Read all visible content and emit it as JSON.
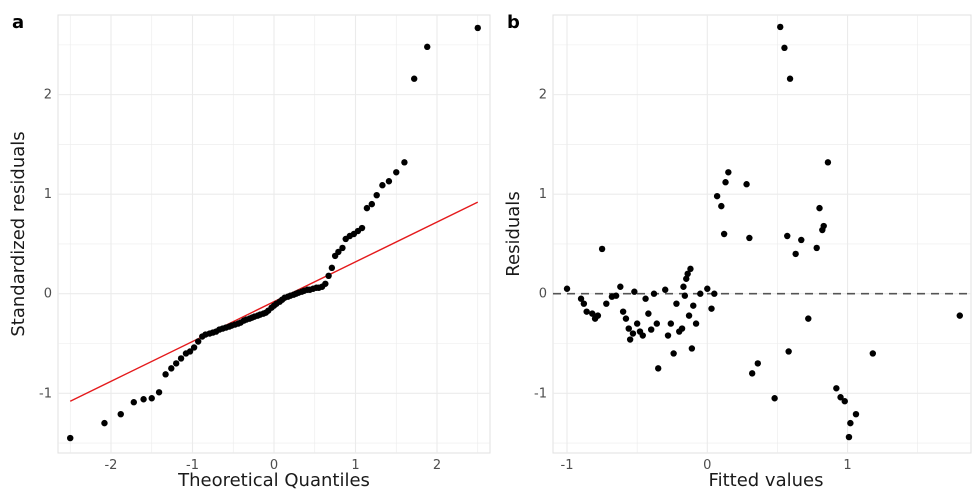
{
  "chart_data": [
    {
      "panel_tag": "a",
      "type": "scatter",
      "xlabel": "Theoretical Quantiles",
      "ylabel": "Standardized residuals",
      "xlim": [
        -2.65,
        2.65
      ],
      "ylim": [
        -1.6,
        2.8
      ],
      "xticks": [
        -2,
        -1,
        0,
        1,
        2
      ],
      "yticks": [
        -1,
        0,
        1,
        2
      ],
      "grid": true,
      "reference_line": {
        "color": "#e41a1c",
        "x": [
          -2.5,
          2.5
        ],
        "y": [
          -1.08,
          0.92
        ]
      },
      "points": [
        [
          -2.5,
          -1.45
        ],
        [
          -2.08,
          -1.3
        ],
        [
          -1.88,
          -1.21
        ],
        [
          -1.72,
          -1.09
        ],
        [
          -1.6,
          -1.06
        ],
        [
          -1.5,
          -1.05
        ],
        [
          -1.41,
          -0.99
        ],
        [
          -1.33,
          -0.81
        ],
        [
          -1.26,
          -0.75
        ],
        [
          -1.2,
          -0.7
        ],
        [
          -1.14,
          -0.65
        ],
        [
          -1.08,
          -0.6
        ],
        [
          -1.03,
          -0.58
        ],
        [
          -0.98,
          -0.54
        ],
        [
          -0.93,
          -0.48
        ],
        [
          -0.88,
          -0.43
        ],
        [
          -0.84,
          -0.41
        ],
        [
          -0.79,
          -0.4
        ],
        [
          -0.75,
          -0.39
        ],
        [
          -0.71,
          -0.38
        ],
        [
          -0.67,
          -0.36
        ],
        [
          -0.63,
          -0.35
        ],
        [
          -0.59,
          -0.34
        ],
        [
          -0.55,
          -0.33
        ],
        [
          -0.52,
          -0.32
        ],
        [
          -0.48,
          -0.31
        ],
        [
          -0.44,
          -0.3
        ],
        [
          -0.41,
          -0.29
        ],
        [
          -0.37,
          -0.27
        ],
        [
          -0.34,
          -0.26
        ],
        [
          -0.3,
          -0.25
        ],
        [
          -0.27,
          -0.24
        ],
        [
          -0.24,
          -0.23
        ],
        [
          -0.2,
          -0.22
        ],
        [
          -0.17,
          -0.21
        ],
        [
          -0.13,
          -0.2
        ],
        [
          -0.1,
          -0.19
        ],
        [
          -0.07,
          -0.17
        ],
        [
          -0.03,
          -0.14
        ],
        [
          0.0,
          -0.12
        ],
        [
          0.03,
          -0.1
        ],
        [
          0.07,
          -0.08
        ],
        [
          0.1,
          -0.06
        ],
        [
          0.13,
          -0.04
        ],
        [
          0.17,
          -0.03
        ],
        [
          0.2,
          -0.02
        ],
        [
          0.24,
          -0.01
        ],
        [
          0.27,
          0.0
        ],
        [
          0.3,
          0.01
        ],
        [
          0.34,
          0.02
        ],
        [
          0.37,
          0.03
        ],
        [
          0.41,
          0.04
        ],
        [
          0.44,
          0.04
        ],
        [
          0.48,
          0.05
        ],
        [
          0.52,
          0.06
        ],
        [
          0.55,
          0.06
        ],
        [
          0.59,
          0.07
        ],
        [
          0.63,
          0.1
        ],
        [
          0.67,
          0.18
        ],
        [
          0.71,
          0.26
        ],
        [
          0.75,
          0.38
        ],
        [
          0.79,
          0.42
        ],
        [
          0.84,
          0.46
        ],
        [
          0.88,
          0.55
        ],
        [
          0.93,
          0.58
        ],
        [
          0.98,
          0.6
        ],
        [
          1.03,
          0.63
        ],
        [
          1.08,
          0.66
        ],
        [
          1.14,
          0.86
        ],
        [
          1.2,
          0.9
        ],
        [
          1.26,
          0.99
        ],
        [
          1.33,
          1.09
        ],
        [
          1.41,
          1.13
        ],
        [
          1.5,
          1.22
        ],
        [
          1.6,
          1.32
        ],
        [
          1.72,
          2.16
        ],
        [
          1.88,
          2.48
        ],
        [
          2.5,
          2.67
        ]
      ]
    },
    {
      "panel_tag": "b",
      "type": "scatter",
      "xlabel": "Fitted values",
      "ylabel": "Residuals",
      "xlim": [
        -1.1,
        1.88
      ],
      "ylim": [
        -1.6,
        2.8
      ],
      "xticks": [
        -1,
        0,
        1
      ],
      "yticks": [
        -1,
        0,
        1,
        2
      ],
      "grid": true,
      "reference_line": {
        "color": "#555555",
        "style": "dashed",
        "y": 0
      },
      "points": [
        [
          -1.0,
          0.05
        ],
        [
          -0.9,
          -0.05
        ],
        [
          -0.88,
          -0.1
        ],
        [
          -0.86,
          -0.18
        ],
        [
          -0.82,
          -0.2
        ],
        [
          -0.8,
          -0.25
        ],
        [
          -0.78,
          -0.22
        ],
        [
          -0.75,
          0.45
        ],
        [
          -0.72,
          -0.1
        ],
        [
          -0.68,
          -0.03
        ],
        [
          -0.65,
          -0.02
        ],
        [
          -0.62,
          0.07
        ],
        [
          -0.6,
          -0.18
        ],
        [
          -0.58,
          -0.25
        ],
        [
          -0.56,
          -0.35
        ],
        [
          -0.55,
          -0.46
        ],
        [
          -0.53,
          -0.4
        ],
        [
          -0.52,
          0.02
        ],
        [
          -0.5,
          -0.3
        ],
        [
          -0.48,
          -0.38
        ],
        [
          -0.46,
          -0.42
        ],
        [
          -0.44,
          -0.05
        ],
        [
          -0.42,
          -0.2
        ],
        [
          -0.4,
          -0.36
        ],
        [
          -0.38,
          0.0
        ],
        [
          -0.36,
          -0.3
        ],
        [
          -0.35,
          -0.75
        ],
        [
          -0.3,
          0.04
        ],
        [
          -0.28,
          -0.42
        ],
        [
          -0.26,
          -0.3
        ],
        [
          -0.24,
          -0.6
        ],
        [
          -0.22,
          -0.1
        ],
        [
          -0.2,
          -0.38
        ],
        [
          -0.18,
          -0.35
        ],
        [
          -0.17,
          0.07
        ],
        [
          -0.16,
          -0.02
        ],
        [
          -0.15,
          0.15
        ],
        [
          -0.14,
          0.2
        ],
        [
          -0.13,
          -0.22
        ],
        [
          -0.12,
          0.25
        ],
        [
          -0.11,
          -0.55
        ],
        [
          -0.1,
          -0.12
        ],
        [
          -0.08,
          -0.3
        ],
        [
          -0.05,
          0.0
        ],
        [
          0.0,
          0.05
        ],
        [
          0.03,
          -0.15
        ],
        [
          0.05,
          0.0
        ],
        [
          0.07,
          0.98
        ],
        [
          0.1,
          0.88
        ],
        [
          0.12,
          0.6
        ],
        [
          0.13,
          1.12
        ],
        [
          0.15,
          1.22
        ],
        [
          0.28,
          1.1
        ],
        [
          0.3,
          0.56
        ],
        [
          0.32,
          -0.8
        ],
        [
          0.36,
          -0.7
        ],
        [
          0.48,
          -1.05
        ],
        [
          0.52,
          2.68
        ],
        [
          0.55,
          2.47
        ],
        [
          0.57,
          0.58
        ],
        [
          0.58,
          -0.58
        ],
        [
          0.59,
          2.16
        ],
        [
          0.63,
          0.4
        ],
        [
          0.67,
          0.54
        ],
        [
          0.72,
          -0.25
        ],
        [
          0.78,
          0.46
        ],
        [
          0.8,
          0.86
        ],
        [
          0.82,
          0.64
        ],
        [
          0.83,
          0.68
        ],
        [
          0.86,
          1.32
        ],
        [
          0.92,
          -0.95
        ],
        [
          0.95,
          -1.04
        ],
        [
          0.98,
          -1.08
        ],
        [
          1.01,
          -1.44
        ],
        [
          1.02,
          -1.3
        ],
        [
          1.06,
          -1.21
        ],
        [
          1.18,
          -0.6
        ],
        [
          1.8,
          -0.22
        ]
      ]
    }
  ]
}
